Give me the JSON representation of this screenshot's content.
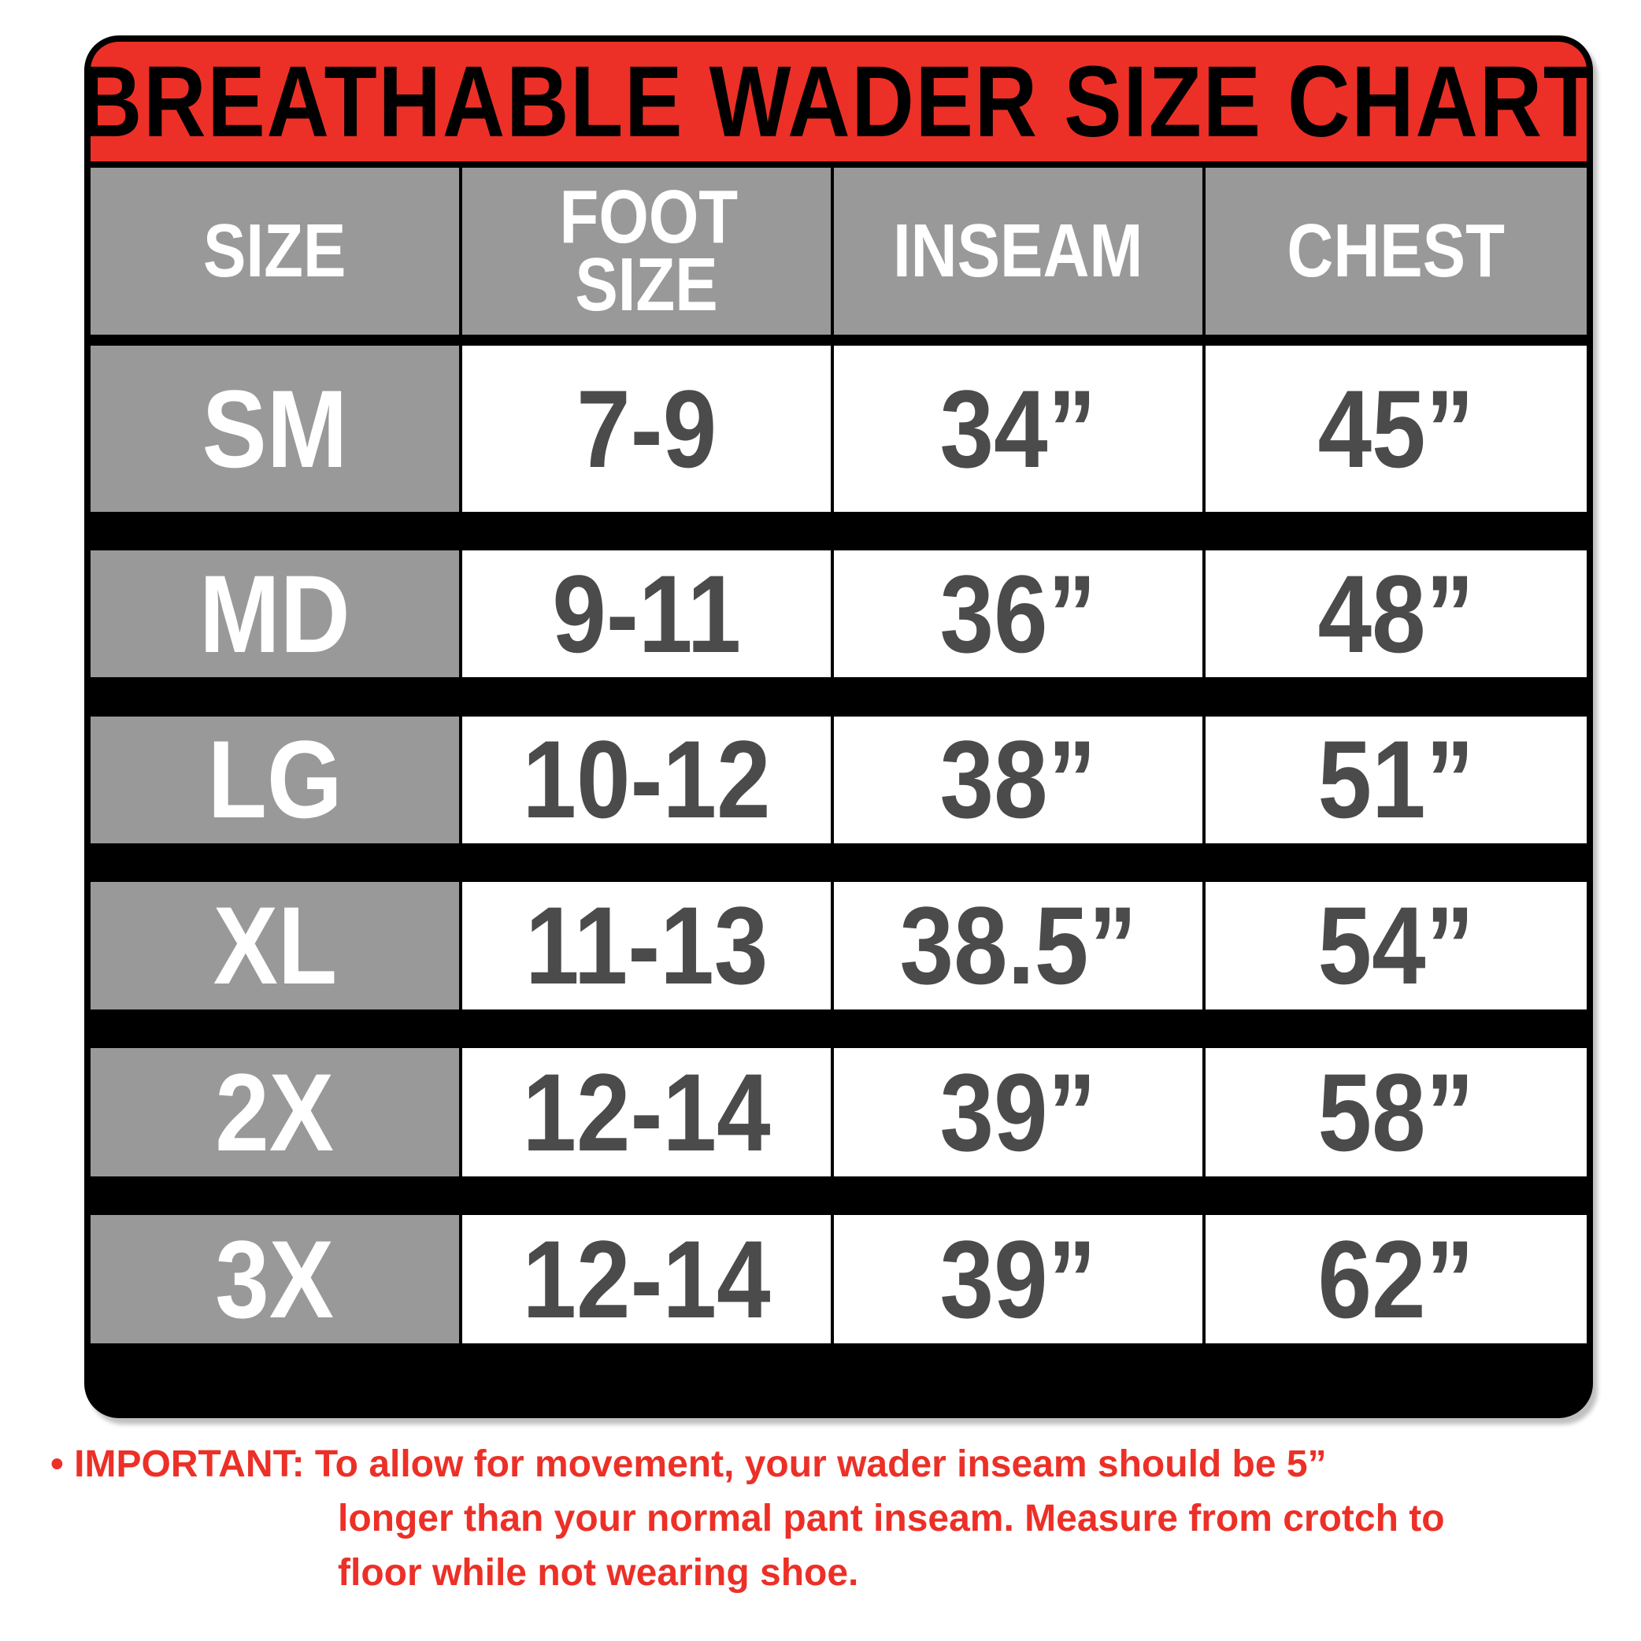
{
  "title": "BREATHABLE WADER SIZE CHART",
  "headers": [
    "SIZE",
    "FOOT SIZE",
    "INSEAM",
    "CHEST"
  ],
  "rows": [
    {
      "size": "SM",
      "foot": "7-9",
      "inseam": "34”",
      "chest": "45”"
    },
    {
      "size": "MD",
      "foot": "9-11",
      "inseam": "36”",
      "chest": "48”"
    },
    {
      "size": "LG",
      "foot": "10-12",
      "inseam": "38”",
      "chest": "51”"
    },
    {
      "size": "XL",
      "foot": "11-13",
      "inseam": "38.5”",
      "chest": "54”"
    },
    {
      "size": "2X",
      "foot": "12-14",
      "inseam": "39”",
      "chest": "58”"
    },
    {
      "size": "3X",
      "foot": "12-14",
      "inseam": "39”",
      "chest": "62”"
    }
  ],
  "note": {
    "bullet": "•",
    "line1": "IMPORTANT: To allow for movement, your wader inseam should be 5”",
    "line2": "longer than your normal pant inseam. Measure from crotch to",
    "line3": "floor while not wearing shoe."
  },
  "colors": {
    "title_bg": "#ec3027",
    "header_bg": "#9a9999",
    "value_text": "#4b4b4b",
    "note_text": "#ec3027"
  }
}
